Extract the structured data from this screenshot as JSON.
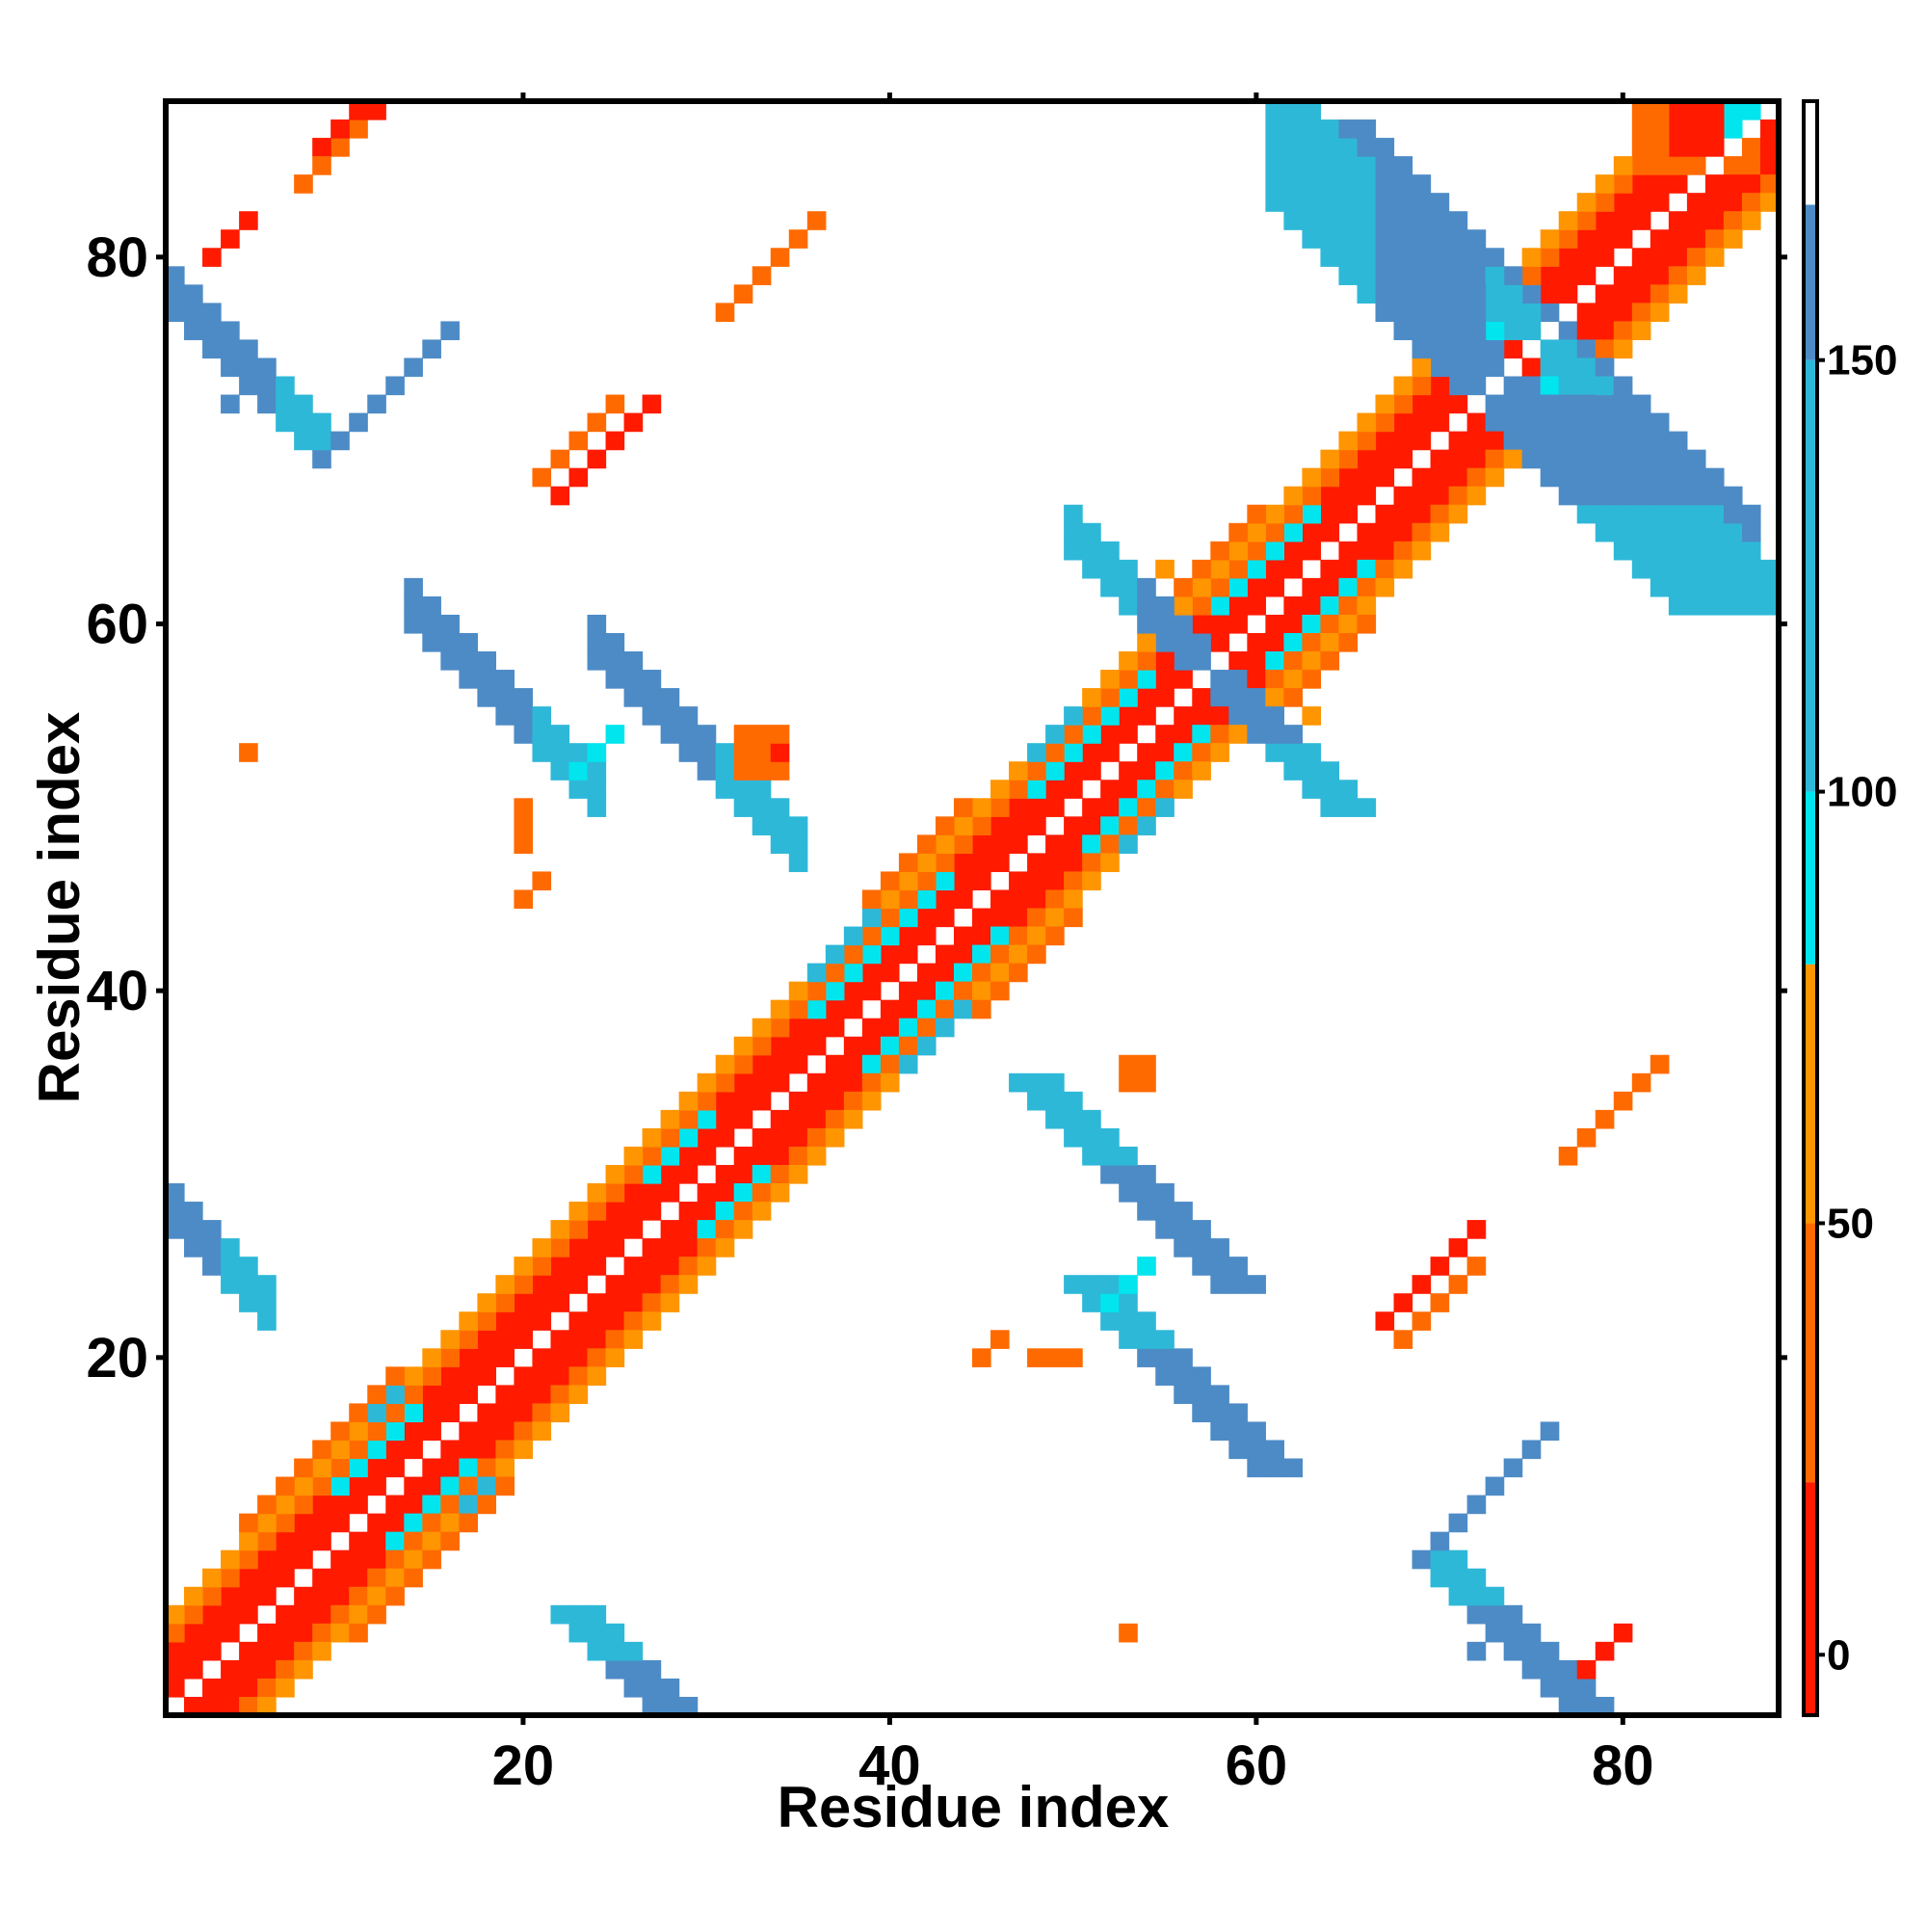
{
  "chart_data": {
    "type": "heatmap",
    "xlabel": "Residue index",
    "ylabel": "Residue index",
    "xlim": [
      0.5,
      88.5
    ],
    "ylim": [
      0.5,
      88.5
    ],
    "x_ticks": [
      20,
      40,
      60,
      80
    ],
    "y_ticks": [
      20,
      40,
      60,
      80
    ],
    "grid": false,
    "colorbar": {
      "position": "right",
      "range": [
        -7,
        180
      ],
      "ticks": [
        0,
        50,
        100,
        150
      ],
      "bands": [
        {
          "from": -7,
          "to": 20,
          "color": "#ff1a00"
        },
        {
          "from": 20,
          "to": 50,
          "color": "#ff6a00"
        },
        {
          "from": 50,
          "to": 80,
          "color": "#ff9500"
        },
        {
          "from": 80,
          "to": 100,
          "color": "#00e5ee"
        },
        {
          "from": 100,
          "to": 150,
          "color": "#2eb8d8"
        },
        {
          "from": 150,
          "to": 168,
          "color": "#4d8bc6"
        },
        {
          "from": 168,
          "to": 180,
          "color": "#ffffff"
        }
      ]
    },
    "contact_bands": [
      {
        "i1": 1,
        "i2": 88,
        "offset": 1,
        "value": 10
      },
      {
        "i1": 1,
        "i2": 88,
        "offset": 2,
        "value": 10
      },
      {
        "i1": 1,
        "i2": 88,
        "offset": 3,
        "value": 10
      },
      {
        "i1": 1,
        "i2": 88,
        "offset": 4,
        "value": 40
      },
      {
        "i1": 1,
        "i2": 88,
        "offset": 5,
        "value": 60
      },
      {
        "i1": 5,
        "i2": 19,
        "offset": 6,
        "value": 40
      },
      {
        "i1": 39,
        "i2": 50,
        "offset": 6,
        "value": 40
      },
      {
        "i1": 55,
        "i2": 66,
        "offset": 6,
        "value": 40
      },
      {
        "i1": 10,
        "i2": 17,
        "offset": 3,
        "value": 90
      },
      {
        "i1": 27,
        "i2": 33,
        "offset": 3,
        "value": 90
      },
      {
        "i1": 36,
        "i2": 46,
        "offset": 3,
        "value": 90
      },
      {
        "i1": 48,
        "i2": 57,
        "offset": 3,
        "value": 90
      },
      {
        "i1": 58,
        "i2": 66,
        "offset": 3,
        "value": 90
      },
      {
        "i1": 72,
        "i2": 77,
        "offset": 3,
        "value": 90
      },
      {
        "i1": 12,
        "i2": 18,
        "offset": 5,
        "value": 120
      },
      {
        "i1": 36,
        "i2": 44,
        "offset": 5,
        "value": 120
      },
      {
        "i1": 48,
        "i2": 55,
        "offset": 5,
        "value": 120
      },
      {
        "i1": 60,
        "i2": 64,
        "offset": 5,
        "value": 120
      },
      {
        "i1": 13,
        "i2": 17,
        "offset": 7,
        "value": 160
      },
      {
        "i1": 27,
        "i2": 31,
        "offset": 7,
        "value": 160
      },
      {
        "i1": 36,
        "i2": 42,
        "offset": 7,
        "value": 120
      },
      {
        "i1": 49,
        "i2": 54,
        "offset": 7,
        "value": 160
      },
      {
        "i1": 59,
        "i2": 63,
        "offset": 7,
        "value": 120
      }
    ],
    "contact_sheets": [
      {
        "s": 29,
        "a": 1,
        "b": 4,
        "w": 3,
        "value": 160
      },
      {
        "s": 29,
        "a": 4,
        "b": 6,
        "w": 3,
        "value": 120
      },
      {
        "s": 79,
        "a": 1,
        "b": 7,
        "w": 3,
        "value": 160
      },
      {
        "s": 79,
        "a": 7,
        "b": 9,
        "w": 3,
        "value": 120
      },
      {
        "s": 75,
        "a": 14,
        "b": 21,
        "w": 3,
        "value": 160
      },
      {
        "s": 75,
        "a": 21,
        "b": 24,
        "w": 3,
        "value": 120
      },
      {
        "s": 83,
        "a": 24,
        "b": 31,
        "w": 3,
        "value": 160
      },
      {
        "s": 83,
        "a": 31,
        "b": 35,
        "w": 3,
        "value": 120
      },
      {
        "s": 115,
        "a": 53,
        "b": 62,
        "w": 3,
        "value": 160
      },
      {
        "s": 115,
        "a": 50,
        "b": 53,
        "w": 3,
        "value": 120
      },
      {
        "s": 146,
        "a": 66,
        "b": 76,
        "w": 4,
        "value": 160
      },
      {
        "s": 146,
        "a": 61,
        "b": 66,
        "w": 4,
        "value": 120
      },
      {
        "s": 151,
        "a": 77,
        "b": 87,
        "w": 4,
        "value": 160
      },
      {
        "s": 151,
        "a": 73,
        "b": 77,
        "w": 3,
        "value": 120
      },
      {
        "s": 150,
        "a": 62,
        "b": 66,
        "w": 3,
        "value": 120
      },
      {
        "s": 150,
        "a": 86,
        "b": 88,
        "w": 3,
        "value": 120
      }
    ],
    "contact_blocks": [
      {
        "i": 82,
        "j": 85,
        "w": 5,
        "h": 5,
        "value": 15
      },
      {
        "i": 81,
        "j": 85,
        "w": 7,
        "h": 7,
        "value": 40
      },
      {
        "i": 83,
        "j": 86,
        "w": 4,
        "h": 4,
        "value": 10
      },
      {
        "i": 86,
        "j": 87,
        "w": 2,
        "h": 2,
        "value": 90
      },
      {
        "i": 32,
        "j": 52,
        "w": 3,
        "h": 3,
        "value": 40
      },
      {
        "i": 34,
        "j": 53,
        "w": 1,
        "h": 1,
        "value": 10
      },
      {
        "i": 53,
        "j": 35,
        "w": 2,
        "h": 2,
        "value": 40
      },
      {
        "i": 20,
        "j": 48,
        "w": 1,
        "h": 3,
        "value": 20
      },
      {
        "i": 48,
        "j": 20,
        "w": 3,
        "h": 1,
        "value": 20
      },
      {
        "i": 5,
        "j": 53,
        "w": 1,
        "h": 1,
        "value": 40
      },
      {
        "i": 53,
        "j": 5,
        "w": 1,
        "h": 1,
        "value": 40
      },
      {
        "i": 55,
        "j": 63,
        "w": 1,
        "h": 1,
        "value": 60
      },
      {
        "i": 63,
        "j": 55,
        "w": 1,
        "h": 1,
        "value": 60
      }
    ],
    "contact_diagonals": [
      {
        "i": 10,
        "j": 86,
        "n": 4,
        "value": 10
      },
      {
        "i": 9,
        "j": 86,
        "n": 5,
        "value": 10
      },
      {
        "i": 8,
        "j": 84,
        "n": 4,
        "value": 40
      },
      {
        "i": 3,
        "j": 80,
        "n": 3,
        "value": 10
      },
      {
        "i": 22,
        "j": 67,
        "n": 6,
        "value": 10
      },
      {
        "i": 21,
        "j": 68,
        "n": 5,
        "value": 40
      },
      {
        "i": 31,
        "j": 77,
        "n": 6,
        "value": 40
      },
      {
        "i": 9,
        "j": 69,
        "n": 8,
        "value": 160
      },
      {
        "i": 4,
        "j": 72,
        "n": 3,
        "value": 160
      },
      {
        "i": 67,
        "j": 22,
        "n": 6,
        "value": 10
      },
      {
        "i": 68,
        "j": 21,
        "n": 5,
        "value": 40
      },
      {
        "i": 77,
        "j": 31,
        "n": 6,
        "value": 40
      },
      {
        "i": 78,
        "j": 3,
        "n": 3,
        "value": 10
      },
      {
        "i": 69,
        "j": 9,
        "n": 8,
        "value": 160
      },
      {
        "i": 72,
        "j": 4,
        "n": 3,
        "value": 160
      },
      {
        "i": 52,
        "j": 23,
        "n": 3,
        "value": 90
      },
      {
        "i": 23,
        "j": 52,
        "n": 3,
        "value": 90
      },
      {
        "i": 45,
        "j": 20,
        "n": 2,
        "value": 40
      },
      {
        "i": 20,
        "j": 45,
        "n": 2,
        "value": 40
      }
    ]
  }
}
